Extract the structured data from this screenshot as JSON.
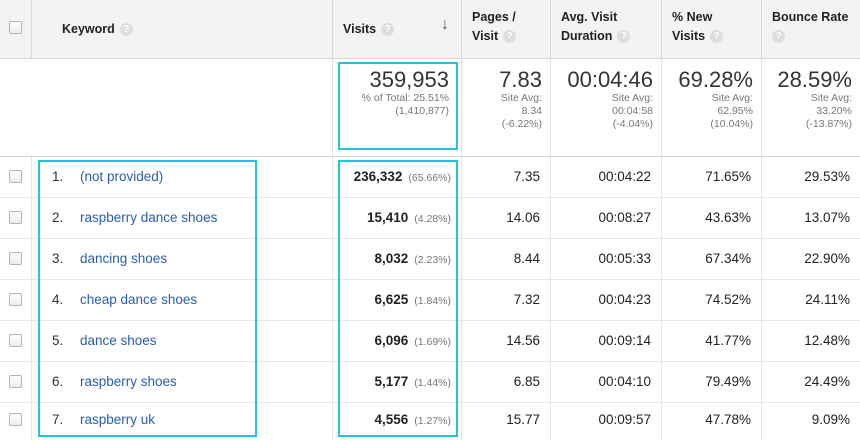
{
  "header": {
    "keyword": "Keyword",
    "visits": "Visits",
    "sort_arrow": "↓",
    "pages_line1": "Pages /",
    "pages_line2": "Visit",
    "duration_line1": "Avg. Visit",
    "duration_line2": "Duration",
    "new_line1": "% New",
    "new_line2": "Visits",
    "bounce": "Bounce Rate",
    "help_glyph": "?"
  },
  "summary": {
    "visits": {
      "value": "359,953",
      "sub1": "% of Total: 25.51%",
      "sub2": "(1,410,877)"
    },
    "pages": {
      "value": "7.83",
      "sub1": "Site Avg:",
      "sub2": "8.34",
      "sub3": "(-6.22%)"
    },
    "duration": {
      "value": "00:04:46",
      "sub1": "Site Avg:",
      "sub2": "00:04:58",
      "sub3": "(-4.04%)"
    },
    "new": {
      "value": "69.28%",
      "sub1": "Site Avg:",
      "sub2": "62.95%",
      "sub3": "(10.04%)"
    },
    "bounce": {
      "value": "28.59%",
      "sub1": "Site Avg:",
      "sub2": "33.20%",
      "sub3": "(-13.87%)"
    }
  },
  "rows": [
    {
      "index": "1.",
      "keyword": "(not provided)",
      "visits": "236,332",
      "pct": "(65.66%)",
      "pages": "7.35",
      "duration": "00:04:22",
      "new": "71.65%",
      "bounce": "29.53%"
    },
    {
      "index": "2.",
      "keyword": "raspberry dance shoes",
      "visits": "15,410",
      "pct": "(4.28%)",
      "pages": "14.06",
      "duration": "00:08:27",
      "new": "43.63%",
      "bounce": "13.07%"
    },
    {
      "index": "3.",
      "keyword": "dancing shoes",
      "visits": "8,032",
      "pct": "(2.23%)",
      "pages": "8.44",
      "duration": "00:05:33",
      "new": "67.34%",
      "bounce": "22.90%"
    },
    {
      "index": "4.",
      "keyword": "cheap dance shoes",
      "visits": "6,625",
      "pct": "(1.84%)",
      "pages": "7.32",
      "duration": "00:04:23",
      "new": "74.52%",
      "bounce": "24.11%"
    },
    {
      "index": "5.",
      "keyword": "dance shoes",
      "visits": "6,096",
      "pct": "(1.69%)",
      "pages": "14.56",
      "duration": "00:09:14",
      "new": "41.77%",
      "bounce": "12.48%"
    },
    {
      "index": "6.",
      "keyword": "raspberry shoes",
      "visits": "5,177",
      "pct": "(1.44%)",
      "pages": "6.85",
      "duration": "00:04:10",
      "new": "79.49%",
      "bounce": "24.49%"
    },
    {
      "index": "7.",
      "keyword": "raspberry uk",
      "visits": "4,556",
      "pct": "(1.27%)",
      "pages": "15.77",
      "duration": "00:09:57",
      "new": "47.78%",
      "bounce": "9.09%"
    }
  ],
  "colors": {
    "highlight": "#1ec6e0",
    "link": "#2a5db0",
    "header_bg": "#f3f3f3"
  }
}
